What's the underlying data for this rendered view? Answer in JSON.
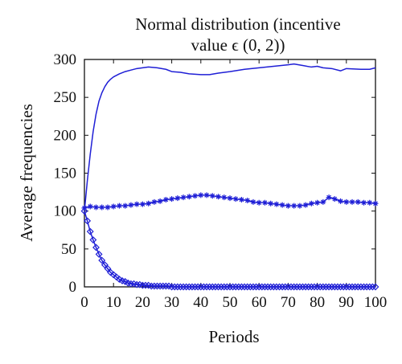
{
  "chart_data": {
    "type": "line",
    "title_lines": [
      "Normal distribution (incentive",
      "value ϵ (0, 2))"
    ],
    "xlabel": "Periods",
    "ylabel": "Average frequencies",
    "xlim": [
      0,
      100
    ],
    "ylim": [
      0,
      300
    ],
    "xticks": [
      "0",
      "10",
      "20",
      "30",
      "40",
      "50",
      "60",
      "70",
      "80",
      "90",
      "100"
    ],
    "yticks": [
      "0",
      "50",
      "100",
      "150",
      "200",
      "250",
      "300"
    ],
    "grid": false,
    "line_color": "#1f1fd6",
    "series": [
      {
        "marker": "none",
        "x": [
          0,
          1,
          2,
          3,
          4,
          5,
          6,
          7,
          8,
          9,
          10,
          12,
          14,
          16,
          18,
          20,
          22,
          25,
          28,
          30,
          33,
          36,
          40,
          43,
          46,
          50,
          55,
          60,
          65,
          70,
          72,
          75,
          78,
          80,
          82,
          85,
          88,
          90,
          95,
          98,
          100
        ],
        "y": [
          100,
          140,
          175,
          205,
          228,
          245,
          256,
          264,
          270,
          274,
          277,
          281,
          284,
          286,
          288,
          289,
          290,
          289,
          287,
          284,
          283,
          281,
          280,
          280,
          282,
          284,
          287,
          289,
          291,
          293,
          294,
          292,
          290,
          291,
          289,
          288,
          285,
          288,
          287,
          287,
          289
        ]
      },
      {
        "marker": "star",
        "x": [
          0,
          2,
          4,
          6,
          8,
          10,
          12,
          14,
          16,
          18,
          20,
          22,
          24,
          26,
          28,
          30,
          32,
          34,
          36,
          38,
          40,
          42,
          44,
          46,
          48,
          50,
          52,
          54,
          56,
          58,
          60,
          62,
          64,
          66,
          68,
          70,
          72,
          74,
          76,
          78,
          80,
          82,
          84,
          86,
          88,
          90,
          92,
          94,
          96,
          98,
          100
        ],
        "y": [
          104,
          106,
          105,
          105,
          105,
          106,
          107,
          107,
          108,
          109,
          109,
          110,
          112,
          113,
          115,
          116,
          117,
          118,
          119,
          120,
          121,
          121,
          120,
          119,
          118,
          117,
          116,
          115,
          114,
          112,
          111,
          111,
          110,
          109,
          108,
          107,
          107,
          107,
          108,
          110,
          111,
          112,
          118,
          116,
          113,
          112,
          112,
          112,
          111,
          111,
          110
        ]
      },
      {
        "marker": "diamond",
        "x": [
          0,
          1,
          2,
          3,
          4,
          5,
          6,
          7,
          8,
          9,
          10,
          11,
          12,
          13,
          14,
          15,
          16,
          17,
          18,
          19,
          20,
          21,
          22,
          23,
          24,
          25,
          26,
          27,
          28,
          29,
          30,
          31,
          32,
          33,
          34,
          35,
          36,
          37,
          38,
          39,
          40,
          41,
          42,
          43,
          44,
          45,
          46,
          47,
          48,
          49,
          50,
          51,
          52,
          53,
          54,
          55,
          56,
          57,
          58,
          59,
          60,
          61,
          62,
          63,
          64,
          65,
          66,
          67,
          68,
          69,
          70,
          71,
          72,
          73,
          74,
          75,
          76,
          77,
          78,
          79,
          80,
          81,
          82,
          83,
          84,
          85,
          86,
          87,
          88,
          89,
          90,
          91,
          92,
          93,
          94,
          95,
          96,
          97,
          98,
          99,
          100
        ],
        "y": [
          100,
          87,
          73,
          62,
          52,
          43,
          35,
          29,
          24,
          19,
          16,
          13,
          10,
          8,
          7,
          5,
          4,
          4,
          3,
          3,
          2,
          2,
          2,
          1,
          1,
          1,
          1,
          1,
          1,
          1,
          0,
          0,
          0,
          0,
          0,
          0,
          0,
          0,
          0,
          0,
          0,
          0,
          0,
          0,
          0,
          0,
          0,
          0,
          0,
          0,
          0,
          0,
          0,
          0,
          0,
          0,
          0,
          0,
          0,
          0,
          0,
          0,
          0,
          0,
          0,
          0,
          0,
          0,
          0,
          0,
          0,
          0,
          0,
          0,
          0,
          0,
          0,
          0,
          0,
          0,
          0,
          0,
          0,
          0,
          0,
          0,
          0,
          0,
          0,
          0,
          0,
          0,
          0,
          0,
          0,
          0,
          0,
          0,
          0,
          0,
          0
        ]
      }
    ]
  }
}
